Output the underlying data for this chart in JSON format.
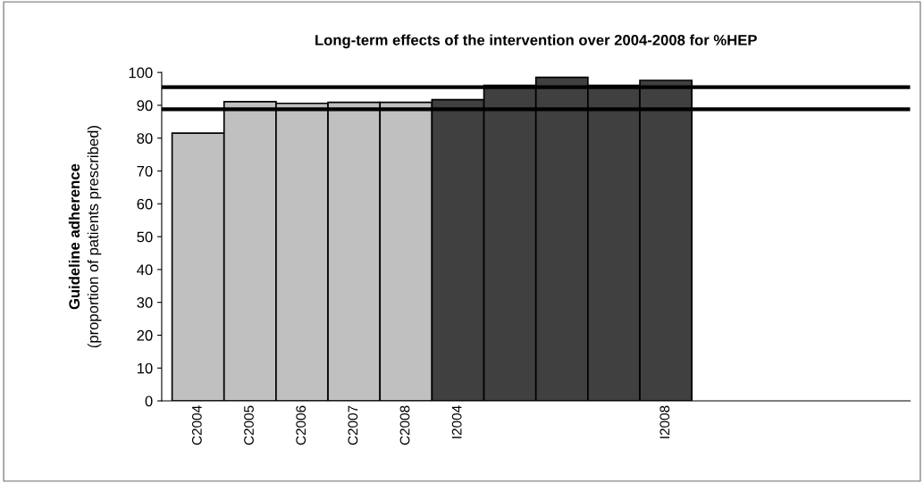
{
  "chart_data": {
    "type": "bar",
    "title": "Long-term effects of the intervention over 2004-2008 for %HEP",
    "ylabel": "Guideline adherence\n(proportion of patients prescribed)",
    "categories": [
      "C2004",
      "C2005",
      "C2006",
      "C2007",
      "C2008",
      "I2004",
      null,
      null,
      null,
      "I2008"
    ],
    "values": [
      81.5,
      91.1,
      90.6,
      90.9,
      90.9,
      91.7,
      96.1,
      98.5,
      96.1,
      97.6
    ],
    "colors": [
      "#c0c0c0",
      "#c0c0c0",
      "#c0c0c0",
      "#c0c0c0",
      "#c0c0c0",
      "#404040",
      "#404040",
      "#404040",
      "#404040",
      "#404040"
    ],
    "ylim": [
      0,
      100
    ],
    "yticks": [
      0,
      10,
      20,
      30,
      40,
      50,
      60,
      70,
      80,
      90,
      100
    ],
    "ref_lines": [
      {
        "axis": "y",
        "value": 95.5,
        "color": "#000000"
      },
      {
        "axis": "y",
        "value": 88.8,
        "color": "#000000"
      }
    ],
    "grid": false,
    "legend": false
  }
}
